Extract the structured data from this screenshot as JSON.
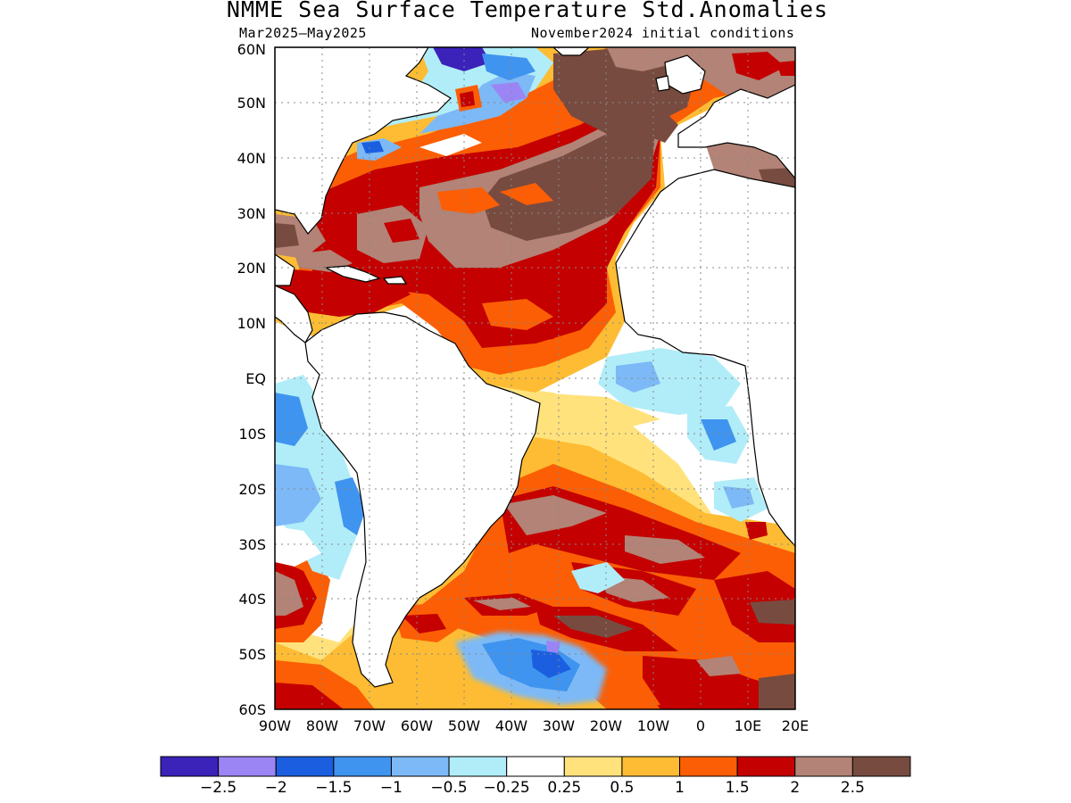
{
  "header": {
    "title": "NMME Sea Surface Temperature Std.Anomalies",
    "period": "Mar2025–May2025",
    "initial": "November2024 initial conditions"
  },
  "axes": {
    "lat_labels": [
      "60N",
      "50N",
      "40N",
      "30N",
      "20N",
      "10N",
      "EQ",
      "10S",
      "20S",
      "30S",
      "40S",
      "50S",
      "60S"
    ],
    "lon_labels": [
      "90W",
      "80W",
      "70W",
      "60W",
      "50W",
      "40W",
      "30W",
      "20W",
      "10W",
      "0",
      "10E",
      "20E"
    ]
  },
  "colorbar": {
    "colors": [
      "#3b22b9",
      "#9b85f4",
      "#1b5fe0",
      "#3f94ef",
      "#7db9f6",
      "#b1edf8",
      "#ffffff",
      "#ffe27c",
      "#fdbc33",
      "#fb5e05",
      "#c40000",
      "#b28376",
      "#784b40"
    ],
    "labels": [
      "−2.5",
      "−2",
      "−1.5",
      "−1",
      "−0.5",
      "−0.25",
      "0.25",
      "0.5",
      "1",
      "1.5",
      "2",
      "2.5"
    ]
  }
}
